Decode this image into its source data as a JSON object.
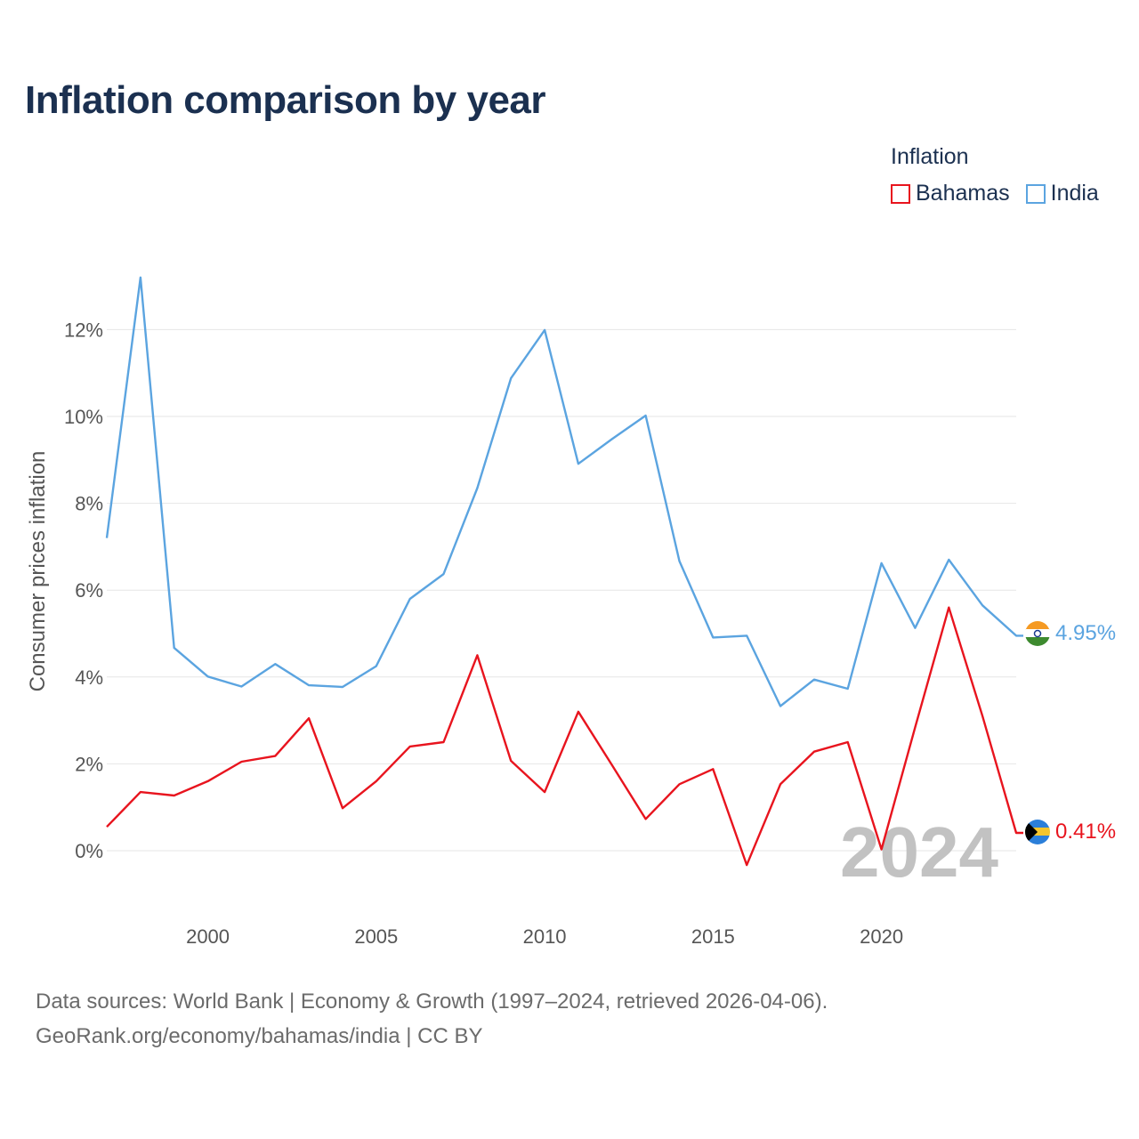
{
  "title": "Inflation comparison by year",
  "legend": {
    "title": "Inflation",
    "items": [
      {
        "name": "Bahamas",
        "color": "#e8141e"
      },
      {
        "name": "India",
        "color": "#5ba4e0"
      }
    ]
  },
  "chart_data": {
    "type": "line",
    "title": "Inflation comparison by year",
    "xlabel": "",
    "ylabel": "Consumer prices inflation",
    "xlim": [
      1997,
      2024
    ],
    "ylim": [
      -1.5,
      13.5
    ],
    "x_ticks": [
      2000,
      2005,
      2010,
      2015,
      2020
    ],
    "y_ticks": [
      0,
      2,
      4,
      6,
      8,
      10,
      12
    ],
    "y_tick_labels": [
      "0%",
      "2%",
      "4%",
      "6%",
      "8%",
      "10%",
      "12%"
    ],
    "grid": true,
    "legend_position": "top-right",
    "x": [
      1997,
      1998,
      1999,
      2000,
      2001,
      2002,
      2003,
      2004,
      2005,
      2006,
      2007,
      2008,
      2009,
      2010,
      2011,
      2012,
      2013,
      2014,
      2015,
      2016,
      2017,
      2018,
      2019,
      2020,
      2021,
      2022,
      2023,
      2024
    ],
    "series": [
      {
        "name": "Bahamas",
        "color": "#e8141e",
        "end_label": "0.41%",
        "values": [
          0.55,
          1.35,
          1.27,
          1.6,
          2.05,
          2.18,
          3.05,
          0.98,
          1.6,
          2.4,
          2.5,
          4.5,
          2.07,
          1.35,
          3.2,
          1.97,
          0.73,
          1.53,
          1.88,
          -0.33,
          1.53,
          2.28,
          2.5,
          0.03,
          2.84,
          5.6,
          3.1,
          0.41
        ]
      },
      {
        "name": "India",
        "color": "#5ba4e0",
        "end_label": "4.95%",
        "values": [
          7.2,
          13.2,
          4.67,
          4.01,
          3.78,
          4.3,
          3.81,
          3.77,
          4.25,
          5.8,
          6.37,
          8.35,
          10.88,
          11.99,
          8.91,
          9.48,
          10.02,
          6.67,
          4.91,
          4.95,
          3.33,
          3.94,
          3.73,
          6.62,
          5.13,
          6.7,
          5.65,
          4.95
        ]
      }
    ],
    "annotation": "2024"
  },
  "footer": {
    "line1": "Data sources: World Bank | Economy & Growth (1997–2024, retrieved 2026-04-06).",
    "line2": "GeoRank.org/economy/bahamas/india | CC BY"
  }
}
